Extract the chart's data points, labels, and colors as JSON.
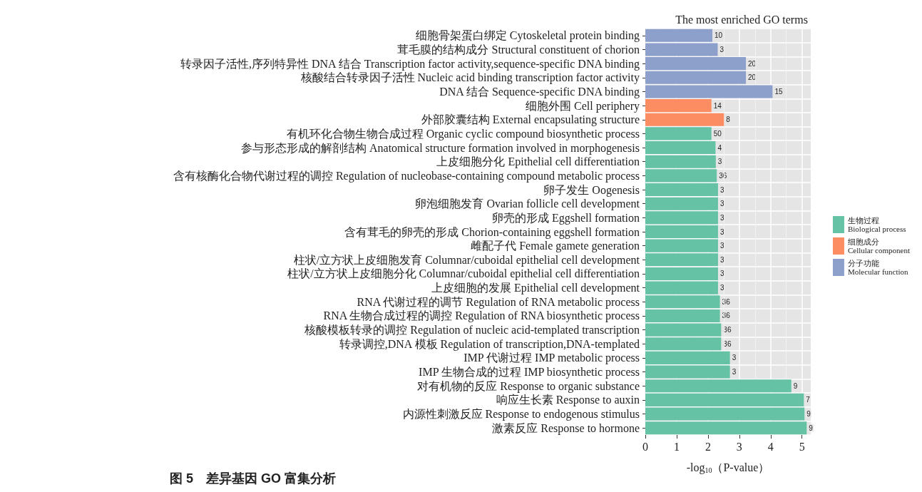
{
  "chart_data": {
    "type": "bar",
    "orientation": "horizontal",
    "stacked": true,
    "title": "The most enriched GO terms",
    "xlabel": "-log$_{10}$（P-value）",
    "annotations": [
      "图 5　差异基因 GO 富集分析",
      {
        "text": "10",
        "x": 2.14,
        "y": "细胞骨架蛋白绑定 Cytoskeletal protein binding"
      },
      {
        "text": "3",
        "x": 2.31,
        "y": "茸毛膜的结构成分 Structural constituent of chorion"
      },
      {
        "text": "20",
        "x": 3.21,
        "y": "转录因子活性,序列特异性 DNA 结合 Transcription factor activity,sequence-specific DNA binding"
      },
      {
        "text": "20",
        "x": 3.21,
        "y": "核酸结合转录因子活性 Nucleic acid binding transcription factor activity"
      },
      {
        "text": "15",
        "x": 4.06,
        "y": "DNA 结合 Sequence-specific DNA binding"
      },
      {
        "text": "14",
        "x": 2.11,
        "y": "细胞外围 Cell periphery"
      },
      {
        "text": "8",
        "x": 2.51,
        "y": "外部胶囊结构 External encapsulating structure"
      },
      {
        "text": "50",
        "x": 2.11,
        "y": "有机环化合物生物合成过程 Organic cyclic compound biosynthetic process"
      },
      {
        "text": "4",
        "x": 2.24,
        "y": "参与形态形成的解剖结构 Anatomical structure formation involved in morphogenesis"
      },
      {
        "text": "3",
        "x": 2.25,
        "y": "上皮细胞分化 Epithelial cell differentiation"
      },
      {
        "text": "36",
        "x": 2.28,
        "y": "含有核酶化合物代谢过程的调控 Regulation of nucleobase-containing compound metabolic process"
      },
      {
        "text": "3",
        "x": 2.32,
        "y": "卵子发生 Oogenesis"
      },
      {
        "text": "3",
        "x": 2.32,
        "y": "卵泡细胞发育 Ovarian follicle cell development"
      },
      {
        "text": "3",
        "x": 2.32,
        "y": "卵壳的形成 Eggshell formation"
      },
      {
        "text": "3",
        "x": 2.32,
        "y": "含有茸毛的卵壳的形成 Chorion-containing eggshell formation"
      },
      {
        "text": "3",
        "x": 2.32,
        "y": "雌配子代 Female gamete generation"
      },
      {
        "text": "3",
        "x": 2.32,
        "y": "柱状/立方状上皮细胞发育 Columnar/cuboidal epithelial cell development"
      },
      {
        "text": "3",
        "x": 2.32,
        "y": "柱状/立方状上皮细胞分化 Columnar/cuboidal epithelial cell differentiation"
      },
      {
        "text": "3",
        "x": 2.32,
        "y": "上皮细胞的发展 Epithelial cell development"
      },
      {
        "text": "36",
        "x": 2.38,
        "y": "RNA 代谢过程的调节 Regulation of RNA metabolic process"
      },
      {
        "text": "36",
        "x": 2.38,
        "y": "RNA 生物合成过程的调控 Regulation of RNA biosynthetic process"
      },
      {
        "text": "36",
        "x": 2.42,
        "y": "核酸模板转录的调控 Regulation of nucleic acid-templated transcription"
      },
      {
        "text": "36",
        "x": 2.42,
        "y": "转录调控,DNA 模板 Regulation of transcription,DNA-templated"
      },
      {
        "text": "3",
        "x": 2.7,
        "y": "IMP 代谢过程 IMP metabolic process"
      },
      {
        "text": "3",
        "x": 2.7,
        "y": "IMP 生物合成的过程 IMP biosynthetic process"
      },
      {
        "text": "9",
        "x": 4.66,
        "y": "对有机物的反应 Response to organic substance"
      },
      {
        "text": "7",
        "x": 5.06,
        "y": "响应生长素 Response to auxin"
      },
      {
        "text": "9",
        "x": 5.08,
        "y": "内源性刺激反应 Response to endogenous stimulus"
      },
      {
        "text": "9",
        "x": 5.15,
        "y": "激素反应 Response to hormone"
      }
    ],
    "categories": [
      "细胞骨架蛋白绑定 Cytoskeletal protein binding",
      "茸毛膜的结构成分 Structural constituent of chorion",
      "转录因子活性,序列特异性 DNA 结合 Transcription factor activity,sequence-specific DNA binding",
      "核酸结合转录因子活性 Nucleic acid binding transcription factor activity",
      "DNA 结合 Sequence-specific DNA binding",
      "细胞外围 Cell periphery",
      "外部胶囊结构 External encapsulating structure",
      "有机环化合物生物合成过程 Organic cyclic compound biosynthetic process",
      "参与形态形成的解剖结构 Anatomical structure formation involved in morphogenesis",
      "上皮细胞分化 Epithelial cell differentiation",
      "含有核酶化合物代谢过程的调控 Regulation of nucleobase-containing compound metabolic process",
      "卵子发生 Oogenesis",
      "卵泡细胞发育 Ovarian follicle cell development",
      "卵壳的形成 Eggshell formation",
      "含有茸毛的卵壳的形成 Chorion-containing eggshell formation",
      "雌配子代 Female gamete generation",
      "柱状/立方状上皮细胞发育 Columnar/cuboidal epithelial cell development",
      "柱状/立方状上皮细胞分化 Columnar/cuboidal epithelial cell differentiation",
      "上皮细胞的发展 Epithelial cell development",
      "RNA 代谢过程的调节 Regulation of RNA metabolic process",
      "RNA 生物合成过程的调控 Regulation of RNA biosynthetic process",
      "核酸模板转录的调控 Regulation of nucleic acid-templated transcription",
      "转录调控,DNA 模板 Regulation of transcription,DNA-templated",
      "IMP 代谢过程 IMP metabolic process",
      "IMP 生物合成的过程 IMP biosynthetic process",
      "对有机物的反应 Response to organic substance",
      "响应生长素 Response to auxin",
      "内源性刺激反应 Response to endogenous stimulus",
      "激素反应 Response to hormone"
    ],
    "series": [
      {
        "name": "生物过程\nBiological process",
        "color": "#66c2a5",
        "values": [
          null,
          null,
          null,
          null,
          null,
          null,
          null,
          2.11,
          2.24,
          2.25,
          2.28,
          2.32,
          2.32,
          2.32,
          2.32,
          2.32,
          2.32,
          2.32,
          2.32,
          2.38,
          2.38,
          2.42,
          2.42,
          2.7,
          2.7,
          4.66,
          5.06,
          5.08,
          5.15
        ]
      },
      {
        "name": "细胞成分\nCellular component",
        "color": "#fc8d62",
        "values": [
          null,
          null,
          null,
          null,
          null,
          2.11,
          2.51,
          null,
          null,
          null,
          null,
          null,
          null,
          null,
          null,
          null,
          null,
          null,
          null,
          null,
          null,
          null,
          null,
          null,
          null,
          null,
          null,
          null,
          null
        ]
      },
      {
        "name": "分子功能\nMolecular function",
        "color": "#8da0cb",
        "values": [
          2.14,
          2.31,
          3.21,
          3.21,
          4.06,
          null,
          null,
          null,
          null,
          null,
          null,
          null,
          null,
          null,
          null,
          null,
          null,
          null,
          null,
          null,
          null,
          null,
          null,
          null,
          null,
          null,
          null,
          null,
          null
        ]
      }
    ],
    "xlim": [
      0,
      5.28
    ],
    "xticks": [
      0,
      1,
      2,
      3,
      4,
      5
    ],
    "grid": true,
    "legend": "right"
  }
}
